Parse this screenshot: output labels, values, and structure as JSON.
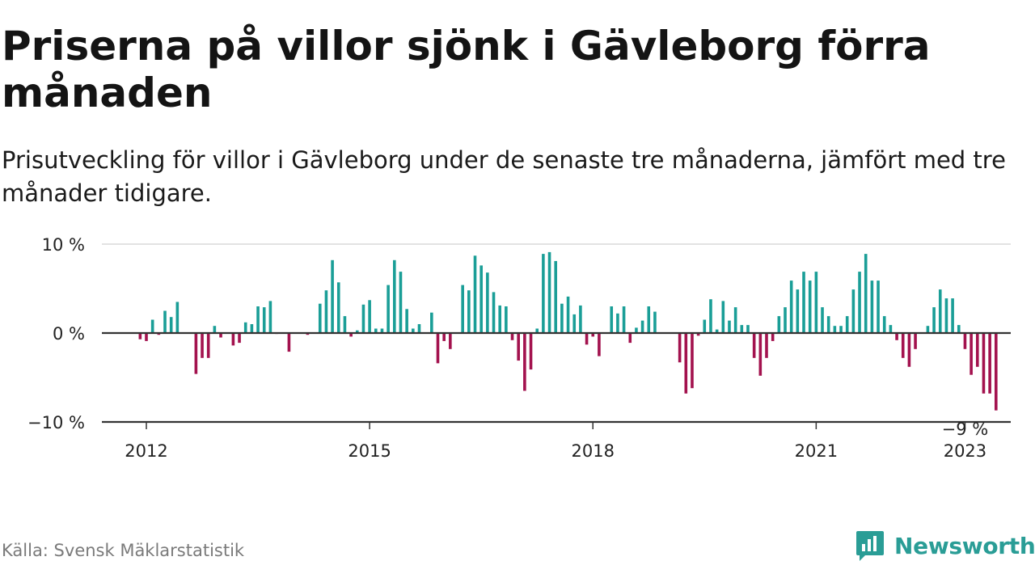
{
  "header": {
    "title": "Priserna på villor sjönk i Gävleborg förra månaden",
    "subtitle": "Prisutveckling för villor i Gävleborg under de senaste tre månaderna, jämfört med tre månader tidigare."
  },
  "footer": {
    "source": "Källa: Svensk Mäklarstatistik",
    "brand": "Newsworthy",
    "brand_icon": "bar-chart-logo-icon"
  },
  "colors": {
    "positive": "#1a9e97",
    "negative": "#a3124e",
    "grid": "#d9d9d9",
    "axis": "#333333",
    "brand": "#2a9d96"
  },
  "chart_data": {
    "type": "bar",
    "x_start": "2011-12",
    "x_step": "month",
    "ylim": [
      -10,
      10
    ],
    "ytick_values": [
      10,
      0,
      -10
    ],
    "ytick_labels": [
      "10 %",
      "0 %",
      "−10 %"
    ],
    "xtick_labels": [
      "2012",
      "2015",
      "2018",
      "2021",
      "2023"
    ],
    "xtick_dates": [
      "2012-01",
      "2015-01",
      "2018-01",
      "2021-01",
      "2023-01"
    ],
    "annotation": {
      "text": "−9 %",
      "date": "2023-01",
      "value": -8.7
    },
    "values": [
      -0.7,
      -0.9,
      1.5,
      -0.2,
      2.5,
      1.8,
      3.5,
      0,
      0,
      -4.6,
      -2.8,
      -2.8,
      0.8,
      -0.5,
      0,
      -1.4,
      -1.1,
      1.2,
      1.0,
      3.0,
      2.9,
      3.6,
      -0.1,
      0,
      -2.1,
      0,
      0,
      -0.2,
      0,
      3.3,
      4.8,
      8.2,
      5.7,
      1.9,
      -0.4,
      0.3,
      3.2,
      3.7,
      0.5,
      0.5,
      5.4,
      8.2,
      6.9,
      2.7,
      0.5,
      1.0,
      0,
      2.3,
      -3.4,
      -0.9,
      -1.8,
      0,
      5.4,
      4.8,
      8.7,
      7.6,
      6.8,
      4.6,
      3.1,
      3.0,
      -0.8,
      -3.1,
      -6.5,
      -4.1,
      0.5,
      8.9,
      9.1,
      8.1,
      3.3,
      4.1,
      2.1,
      3.1,
      -1.3,
      -0.4,
      -2.6,
      0,
      3.0,
      2.2,
      3.0,
      -1.1,
      0.6,
      1.4,
      3.0,
      2.4,
      0,
      0,
      0,
      -3.3,
      -6.8,
      -6.2,
      -0.3,
      1.5,
      3.8,
      0.4,
      3.6,
      1.4,
      2.9,
      0.9,
      0.9,
      -2.8,
      -4.8,
      -2.8,
      -0.9,
      1.9,
      2.9,
      5.9,
      4.9,
      6.9,
      5.9,
      6.9,
      2.9,
      1.9,
      0.8,
      0.8,
      1.9,
      4.9,
      6.9,
      8.9,
      5.9,
      5.9,
      1.9,
      0.9,
      -0.8,
      -2.8,
      -3.8,
      -1.8,
      0,
      0.8,
      2.9,
      4.9,
      3.9,
      3.9,
      0.9,
      -1.8,
      -4.7,
      -3.8,
      -6.8,
      -6.8,
      -8.7
    ]
  }
}
